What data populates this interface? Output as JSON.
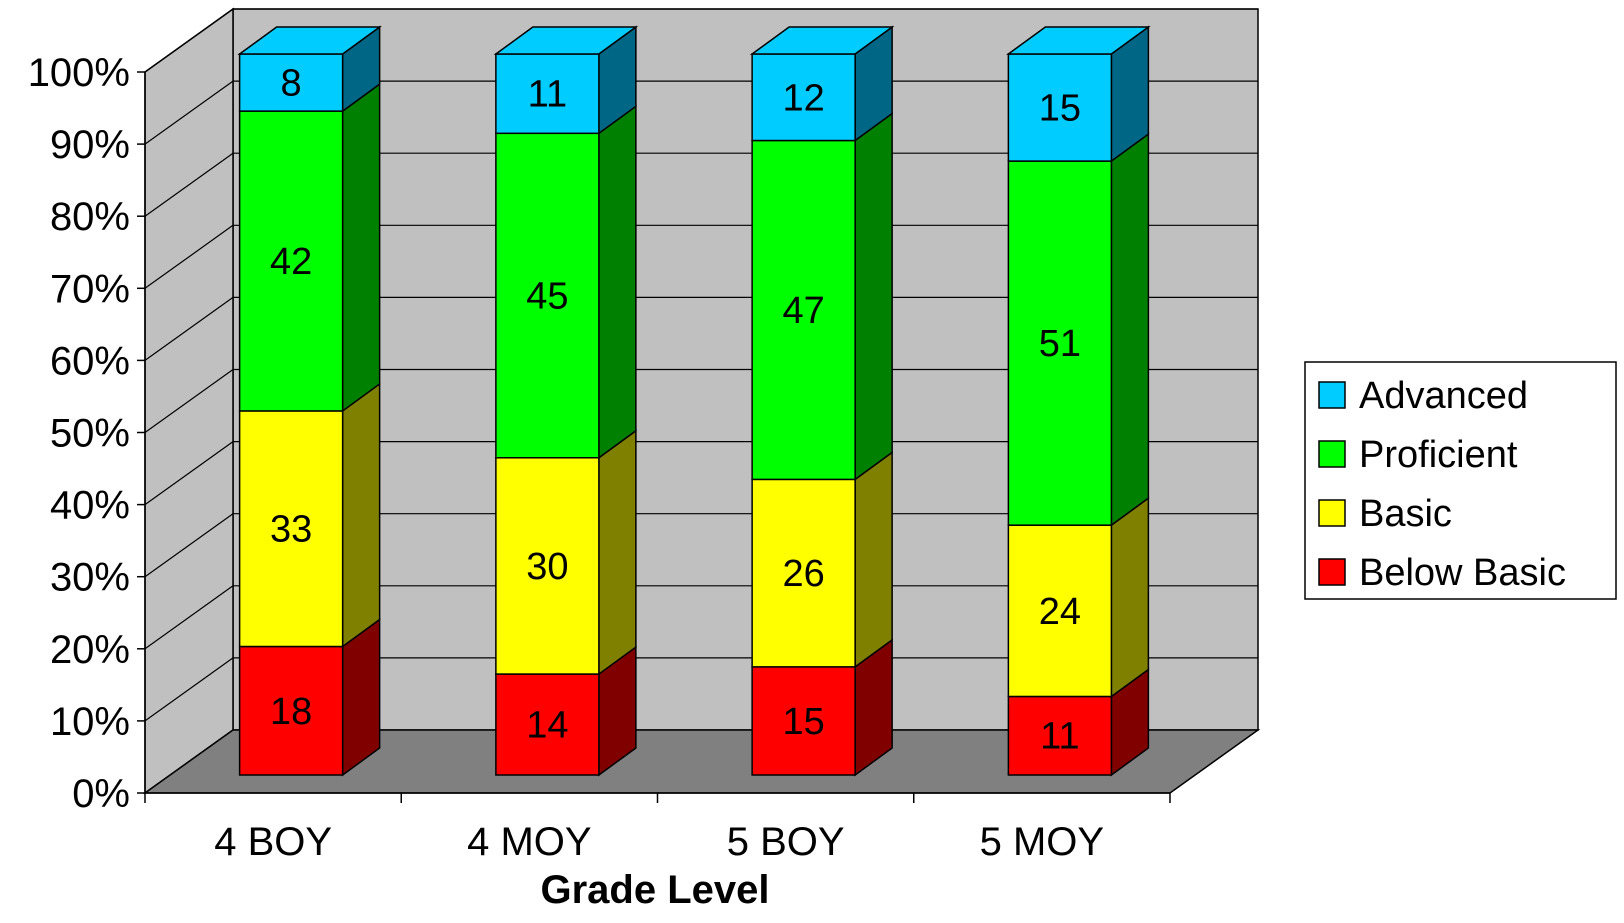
{
  "chart_data": {
    "type": "bar",
    "stacked": "percent",
    "style": "3d",
    "categories": [
      "4  BOY",
      "4  MOY",
      "5  BOY",
      "5  MOY"
    ],
    "series": [
      {
        "name": "Below Basic",
        "values": [
          18,
          14,
          15,
          11
        ],
        "color": "#ff0000",
        "side_color": "#800000"
      },
      {
        "name": "Basic",
        "values": [
          33,
          30,
          26,
          24
        ],
        "color": "#ffff00",
        "side_color": "#808000"
      },
      {
        "name": "Proficient",
        "values": [
          42,
          45,
          47,
          51
        ],
        "color": "#00ff00",
        "side_color": "#008000"
      },
      {
        "name": "Advanced",
        "values": [
          8,
          11,
          12,
          15
        ],
        "color": "#00ccff",
        "side_color": "#006685"
      }
    ],
    "xlabel": "Grade Level",
    "ylabel": "",
    "ylim": [
      0,
      100
    ],
    "yticks": [
      "0%",
      "10%",
      "20%",
      "30%",
      "40%",
      "50%",
      "60%",
      "70%",
      "80%",
      "90%",
      "100%"
    ],
    "legend_order": [
      "Advanced",
      "Proficient",
      "Basic",
      "Below Basic"
    ],
    "legend_position": "right",
    "grid": true,
    "wall_color": "#c0c0c0",
    "floor_color": "#808080"
  }
}
